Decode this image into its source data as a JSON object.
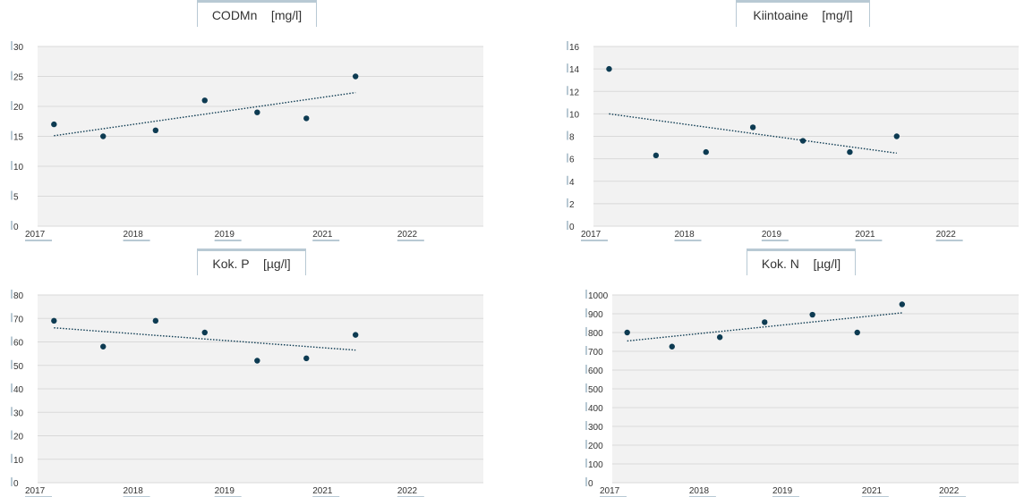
{
  "charts": [
    {
      "title": "CODMn    [mg/l]",
      "chart_data": {
        "type": "scatter",
        "title": "CODMn    [mg/l]",
        "ylim": [
          0,
          30
        ],
        "yticks": [
          0,
          5,
          10,
          15,
          20,
          25,
          30
        ],
        "xlim": [
          2017.0,
          2023.8
        ],
        "xticks": [
          "2017",
          "2018",
          "2019",
          "2021",
          "2022"
        ],
        "grid": true,
        "trendline": "linear dotted",
        "series": [
          {
            "x": [
              2017.25,
              2018.0,
              2018.8,
              2019.55,
              2020.35,
              2021.1,
              2021.85
            ],
            "y": [
              17,
              15,
              16,
              21,
              19,
              18,
              25
            ]
          }
        ],
        "trend": {
          "y_start": 15.1,
          "y_end": 22.3
        }
      }
    },
    {
      "title": "Kiintoaine    [mg/l]",
      "chart_data": {
        "type": "scatter",
        "title": "Kiintoaine    [mg/l]",
        "ylim": [
          0,
          16
        ],
        "yticks": [
          0,
          2,
          4,
          6,
          8,
          10,
          12,
          14,
          16
        ],
        "xlim": [
          2017.0,
          2023.8
        ],
        "xticks": [
          "2017",
          "2018",
          "2019",
          "2021",
          "2022"
        ],
        "grid": true,
        "trendline": "linear dotted",
        "series": [
          {
            "x": [
              2017.25,
              2018.0,
              2018.8,
              2019.55,
              2020.35,
              2021.1,
              2021.85
            ],
            "y": [
              14,
              6.3,
              6.6,
              8.8,
              7.6,
              6.6,
              8.0
            ]
          }
        ],
        "trend": {
          "y_start": 10.0,
          "y_end": 6.5
        }
      }
    },
    {
      "title": "Kok. P    [µg/l]",
      "chart_data": {
        "type": "scatter",
        "title": "Kok. P    [µg/l]",
        "ylim": [
          0,
          80
        ],
        "yticks": [
          0,
          10,
          20,
          30,
          40,
          50,
          60,
          70,
          80
        ],
        "xlim": [
          2017.0,
          2023.8
        ],
        "xticks": [
          "2017",
          "2018",
          "2019",
          "2021",
          "2022"
        ],
        "grid": true,
        "trendline": "linear dotted",
        "series": [
          {
            "x": [
              2017.25,
              2018.0,
              2018.8,
              2019.55,
              2020.35,
              2021.1,
              2021.85
            ],
            "y": [
              69,
              58,
              69,
              64,
              52,
              53,
              63
            ]
          }
        ],
        "trend": {
          "y_start": 66,
          "y_end": 56.5
        }
      }
    },
    {
      "title": "Kok. N    [µg/l]",
      "chart_data": {
        "type": "scatter",
        "title": "Kok. N    [µg/l]",
        "ylim": [
          0,
          1000
        ],
        "yticks": [
          0,
          100,
          200,
          300,
          400,
          500,
          600,
          700,
          800,
          900,
          1000
        ],
        "xlim": [
          2017.0,
          2023.8
        ],
        "xticks": [
          "2017",
          "2018",
          "2019",
          "2021",
          "2022"
        ],
        "grid": true,
        "trendline": "linear dotted",
        "series": [
          {
            "x": [
              2017.25,
              2018.0,
              2018.8,
              2019.55,
              2020.35,
              2021.1,
              2021.85
            ],
            "y": [
              800,
              725,
              775,
              855,
              895,
              800,
              950
            ]
          }
        ],
        "trend": {
          "y_start": 755,
          "y_end": 905
        }
      }
    }
  ],
  "colors": {
    "point": "#0d3b52",
    "trend": "#0d3b52",
    "plot_bg": "#f2f2f2",
    "grid": "#d9d9d9",
    "tick_marker": "#b8c9d4"
  }
}
